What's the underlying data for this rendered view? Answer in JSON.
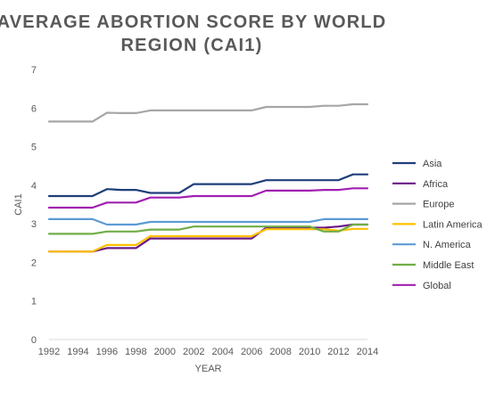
{
  "chart_data": {
    "type": "line",
    "title_lines": [
      "AVERAGE ABORTION SCORE BY WORLD",
      "REGION (CAI1)"
    ],
    "xlabel": "YEAR",
    "ylabel": "CAI1",
    "xlim": [
      1992,
      2014
    ],
    "ylim": [
      0,
      7
    ],
    "x_ticks": [
      "1992",
      "1994",
      "1996",
      "1998",
      "2000",
      "2002",
      "2004",
      "2006",
      "2008",
      "2010",
      "2012",
      "2014"
    ],
    "y_ticks": [
      "0",
      "1",
      "2",
      "3",
      "4",
      "5",
      "6",
      "7"
    ],
    "grid": false,
    "legend_position": "right",
    "x": [
      1992,
      1993,
      1994,
      1995,
      1996,
      1997,
      1998,
      1999,
      2000,
      2001,
      2002,
      2003,
      2004,
      2005,
      2006,
      2007,
      2008,
      2009,
      2010,
      2011,
      2012,
      2013,
      2014
    ],
    "series": [
      {
        "name": "Asia",
        "color": "#1f3f7a",
        "values": [
          3.72,
          3.72,
          3.72,
          3.72,
          3.9,
          3.88,
          3.88,
          3.8,
          3.8,
          3.8,
          4.03,
          4.03,
          4.03,
          4.03,
          4.03,
          4.13,
          4.13,
          4.13,
          4.13,
          4.13,
          4.13,
          4.28,
          4.28
        ]
      },
      {
        "name": "Africa",
        "color": "#6a1b84",
        "values": [
          2.28,
          2.28,
          2.28,
          2.28,
          2.37,
          2.37,
          2.37,
          2.62,
          2.62,
          2.62,
          2.62,
          2.62,
          2.62,
          2.62,
          2.62,
          2.9,
          2.9,
          2.9,
          2.9,
          2.9,
          2.93,
          2.98,
          2.98
        ]
      },
      {
        "name": "Europe",
        "color": "#a6a6a6",
        "values": [
          5.65,
          5.65,
          5.65,
          5.65,
          5.88,
          5.87,
          5.87,
          5.94,
          5.94,
          5.94,
          5.94,
          5.94,
          5.94,
          5.94,
          5.94,
          6.03,
          6.03,
          6.03,
          6.03,
          6.06,
          6.06,
          6.1,
          6.1
        ]
      },
      {
        "name": "Latin America",
        "color": "#ffc000",
        "values": [
          2.28,
          2.28,
          2.28,
          2.28,
          2.45,
          2.45,
          2.45,
          2.68,
          2.68,
          2.68,
          2.68,
          2.68,
          2.68,
          2.68,
          2.68,
          2.86,
          2.86,
          2.86,
          2.86,
          2.86,
          2.82,
          2.87,
          2.87
        ]
      },
      {
        "name": "N. America",
        "color": "#5b9bd5",
        "values": [
          3.12,
          3.12,
          3.12,
          3.12,
          2.98,
          2.98,
          2.98,
          3.05,
          3.05,
          3.05,
          3.05,
          3.05,
          3.05,
          3.05,
          3.05,
          3.05,
          3.05,
          3.05,
          3.05,
          3.12,
          3.12,
          3.12,
          3.12
        ]
      },
      {
        "name": "Middle East",
        "color": "#70ad47",
        "values": [
          2.74,
          2.74,
          2.74,
          2.74,
          2.8,
          2.8,
          2.8,
          2.85,
          2.85,
          2.85,
          2.93,
          2.93,
          2.93,
          2.93,
          2.93,
          2.93,
          2.93,
          2.93,
          2.93,
          2.8,
          2.8,
          2.98,
          2.98
        ]
      },
      {
        "name": "Global",
        "color": "#a020b0",
        "values": [
          3.42,
          3.42,
          3.42,
          3.42,
          3.55,
          3.55,
          3.55,
          3.68,
          3.68,
          3.68,
          3.72,
          3.72,
          3.72,
          3.72,
          3.72,
          3.86,
          3.86,
          3.86,
          3.86,
          3.88,
          3.88,
          3.92,
          3.92
        ]
      }
    ]
  }
}
